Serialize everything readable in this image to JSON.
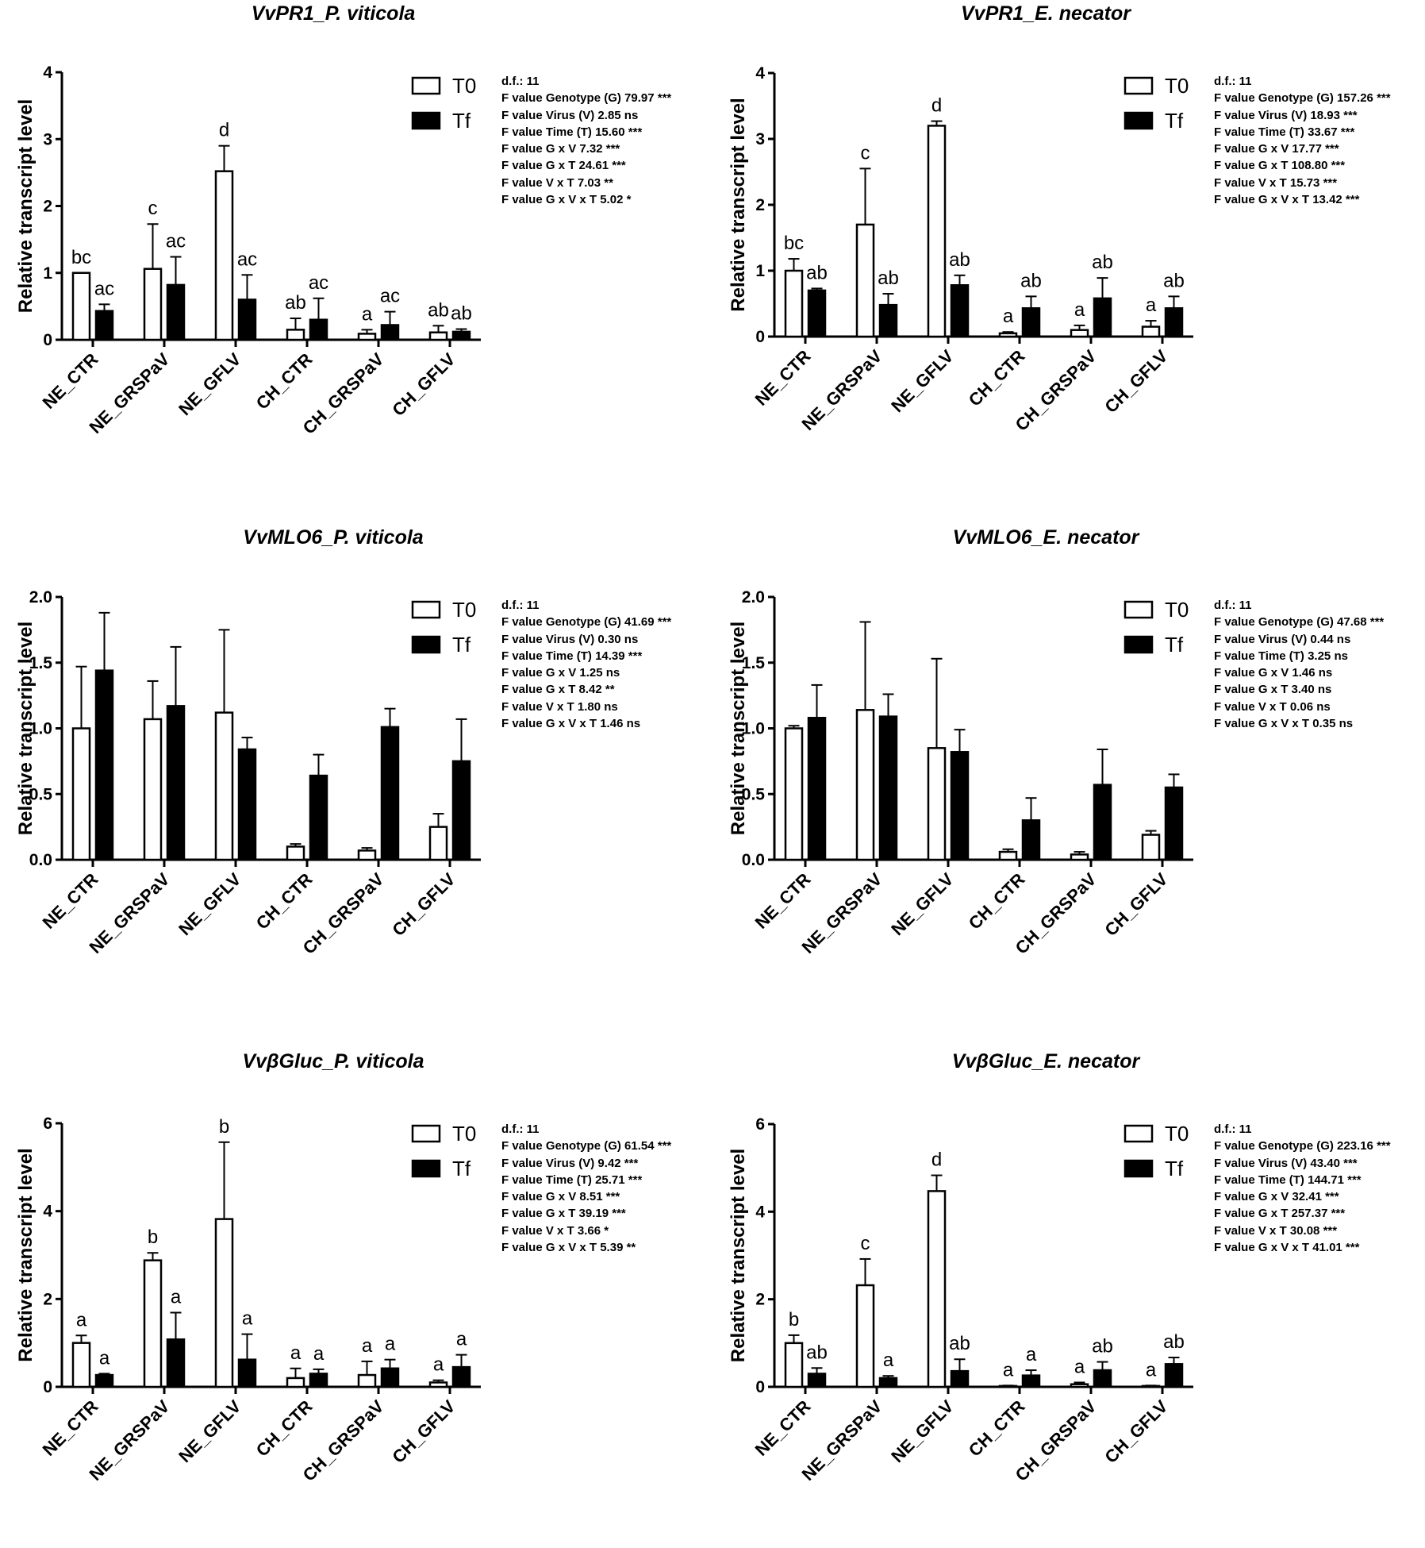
{
  "legend": [
    "T0",
    "Tf"
  ],
  "chart_data": [
    {
      "type": "bar",
      "title_italic": "VvPR1",
      "title_rest": "_P. viticola",
      "ylabel": "Relative transcript level",
      "ylim": [
        0,
        4
      ],
      "yticks": [
        "0",
        "1",
        "2",
        "3",
        "4"
      ],
      "categories": [
        "NE_CTR",
        "NE_GRSPaV",
        "NE_GFLV",
        "CH_CTR",
        "CH_GRSPaV",
        "CH_GFLV"
      ],
      "series": [
        {
          "name": "T0",
          "values": [
            1.0,
            1.06,
            2.52,
            0.15,
            0.09,
            0.11
          ],
          "errors": [
            0.0,
            0.67,
            0.38,
            0.17,
            0.06,
            0.1
          ],
          "letters": [
            "bc",
            "c",
            "d",
            "ab",
            "a",
            "ab"
          ]
        },
        {
          "name": "Tf",
          "values": [
            0.43,
            0.82,
            0.6,
            0.3,
            0.22,
            0.12
          ],
          "errors": [
            0.1,
            0.42,
            0.37,
            0.32,
            0.2,
            0.04
          ],
          "letters": [
            "ac",
            "ac",
            "ac",
            "ac",
            "ac",
            "ab"
          ]
        }
      ],
      "stats": [
        "d.f.: 11",
        "F value Genotype (G) 79.97 ***",
        "F value Virus (V) 2.85 ns",
        "F value Time (T) 15.60 ***",
        "F value G x V 7.32 ***",
        "F value G x T 24.61 ***",
        "F value V x T 7.03 **",
        "F value G x V x T 5.02 *"
      ]
    },
    {
      "type": "bar",
      "title_italic": "VvPR1",
      "title_rest": "_E. necator",
      "ylabel": "Relative transcript level",
      "ylim": [
        0,
        4
      ],
      "yticks": [
        "0",
        "1",
        "2",
        "3",
        "4"
      ],
      "categories": [
        "NE_CTR",
        "NE_GRSPaV",
        "NE_GFLV",
        "CH_CTR",
        "CH_GRSPaV",
        "CH_GFLV"
      ],
      "series": [
        {
          "name": "T0",
          "values": [
            1.0,
            1.7,
            3.2,
            0.05,
            0.1,
            0.15
          ],
          "errors": [
            0.18,
            0.85,
            0.07,
            0.02,
            0.07,
            0.09
          ],
          "letters": [
            "bc",
            "c",
            "d",
            "a",
            "a",
            "a"
          ]
        },
        {
          "name": "Tf",
          "values": [
            0.7,
            0.48,
            0.78,
            0.43,
            0.58,
            0.43
          ],
          "errors": [
            0.03,
            0.17,
            0.15,
            0.18,
            0.31,
            0.18
          ],
          "letters": [
            "ab",
            "ab",
            "ab",
            "ab",
            "ab",
            "ab"
          ]
        }
      ],
      "stats": [
        "d.f.: 11",
        "F value Genotype (G) 157.26 ***",
        "F value Virus (V) 18.93 ***",
        "F value Time (T) 33.67 ***",
        "F value G x V 17.77 ***",
        "F value G x T 108.80 ***",
        "F value V x T 15.73 ***",
        "F value G x V x T 13.42 ***"
      ]
    },
    {
      "type": "bar",
      "title_italic": "VvMLO6",
      "title_rest": "_P. viticola",
      "ylabel": "Relative transcript level",
      "ylim": [
        0,
        2
      ],
      "yticks": [
        "0.0",
        "0.5",
        "1.0",
        "1.5",
        "2.0"
      ],
      "categories": [
        "NE_CTR",
        "NE_GRSPaV",
        "NE_GFLV",
        "CH_CTR",
        "CH_GRSPaV",
        "CH_GFLV"
      ],
      "series": [
        {
          "name": "T0",
          "values": [
            1.0,
            1.07,
            1.12,
            0.1,
            0.07,
            0.25
          ],
          "errors": [
            0.47,
            0.29,
            0.63,
            0.02,
            0.02,
            0.1
          ],
          "letters": []
        },
        {
          "name": "Tf",
          "values": [
            1.44,
            1.17,
            0.84,
            0.64,
            1.01,
            0.75
          ],
          "errors": [
            0.44,
            0.45,
            0.09,
            0.16,
            0.14,
            0.32
          ],
          "letters": []
        }
      ],
      "stats": [
        "d.f.: 11",
        "F value Genotype (G) 41.69 ***",
        "F value Virus (V) 0.30 ns",
        "F value Time (T) 14.39 ***",
        "F value G x V 1.25 ns",
        "F value G x T 8.42 **",
        "F value V x T 1.80 ns",
        "F value G x V x T 1.46 ns"
      ]
    },
    {
      "type": "bar",
      "title_italic": "VvMLO6",
      "title_rest": "_E. necator",
      "ylabel": "Relative transcript level",
      "ylim": [
        0,
        2
      ],
      "yticks": [
        "0.0",
        "0.5",
        "1.0",
        "1.5",
        "2.0"
      ],
      "categories": [
        "NE_CTR",
        "NE_GRSPaV",
        "NE_GFLV",
        "CH_CTR",
        "CH_GRSPaV",
        "CH_GFLV"
      ],
      "series": [
        {
          "name": "T0",
          "values": [
            1.0,
            1.14,
            0.85,
            0.06,
            0.04,
            0.19
          ],
          "errors": [
            0.02,
            0.67,
            0.68,
            0.02,
            0.02,
            0.03
          ],
          "letters": []
        },
        {
          "name": "Tf",
          "values": [
            1.08,
            1.09,
            0.82,
            0.3,
            0.57,
            0.55
          ],
          "errors": [
            0.25,
            0.17,
            0.17,
            0.17,
            0.27,
            0.1
          ],
          "letters": []
        }
      ],
      "stats": [
        "d.f.: 11",
        "F value Genotype (G) 47.68 ***",
        "F value Virus (V) 0.44 ns",
        "F value Time (T) 3.25 ns",
        "F value G x V 1.46 ns",
        "F value G x T 3.40 ns",
        "F value V x T 0.06 ns",
        "F value G x V x T 0.35 ns"
      ]
    },
    {
      "type": "bar",
      "title_italic": "VvβGluc",
      "title_rest": "_P. viticola",
      "ylabel": "Relative transcript level",
      "ylim": [
        0,
        6
      ],
      "yticks": [
        "0",
        "2",
        "4",
        "6"
      ],
      "categories": [
        "NE_CTR",
        "NE_GRSPaV",
        "NE_GFLV",
        "CH_CTR",
        "CH_GRSPaV",
        "CH_GFLV"
      ],
      "series": [
        {
          "name": "T0",
          "values": [
            1.0,
            2.88,
            3.82,
            0.2,
            0.27,
            0.1
          ],
          "errors": [
            0.17,
            0.17,
            1.75,
            0.22,
            0.31,
            0.05
          ],
          "letters": [
            "a",
            "b",
            "b",
            "a",
            "a",
            "a"
          ]
        },
        {
          "name": "Tf",
          "values": [
            0.27,
            1.08,
            0.62,
            0.3,
            0.42,
            0.45
          ],
          "errors": [
            0.03,
            0.61,
            0.58,
            0.1,
            0.2,
            0.28
          ],
          "letters": [
            "a",
            "a",
            "a",
            "a",
            "a",
            "a"
          ]
        }
      ],
      "stats": [
        "d.f.: 11",
        "F value Genotype (G) 61.54 ***",
        "F value Virus (V) 9.42 ***",
        "F value Time (T) 25.71 ***",
        "F value G x V 8.51 ***",
        "F value G x T 39.19 ***",
        "F value V x T 3.66 *",
        "F value G x V x T 5.39 **"
      ]
    },
    {
      "type": "bar",
      "title_italic": "VvβGluc",
      "title_rest": "_E. necator",
      "ylabel": "Relative transcript level",
      "ylim": [
        0,
        6
      ],
      "yticks": [
        "0",
        "2",
        "4",
        "6"
      ],
      "categories": [
        "NE_CTR",
        "NE_GRSPaV",
        "NE_GFLV",
        "CH_CTR",
        "CH_GRSPaV",
        "CH_GFLV"
      ],
      "series": [
        {
          "name": "T0",
          "values": [
            1.0,
            2.32,
            4.47,
            0.02,
            0.06,
            0.02
          ],
          "errors": [
            0.18,
            0.6,
            0.36,
            0.01,
            0.04,
            0.01
          ],
          "letters": [
            "b",
            "c",
            "d",
            "a",
            "a",
            "a"
          ]
        },
        {
          "name": "Tf",
          "values": [
            0.3,
            0.2,
            0.36,
            0.26,
            0.38,
            0.52
          ],
          "errors": [
            0.13,
            0.05,
            0.27,
            0.12,
            0.19,
            0.15
          ],
          "letters": [
            "ab",
            "a",
            "ab",
            "a",
            "ab",
            "ab"
          ]
        }
      ],
      "stats": [
        "d.f.: 11",
        "F value Genotype (G) 223.16 ***",
        "F value Virus (V) 43.40 ***",
        "F value Time (T) 144.71 ***",
        "F value G x V 32.41 ***",
        "F value G x T 257.37 ***",
        "F value V x T 30.08 ***",
        "F value G x V x T 41.01 ***"
      ]
    }
  ]
}
